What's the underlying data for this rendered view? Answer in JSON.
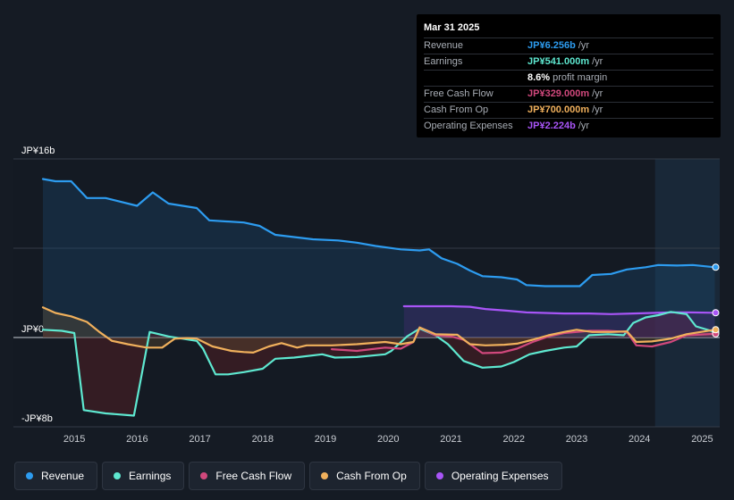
{
  "chart_data": {
    "type": "area",
    "currency": "JPY",
    "y_tick_labels": [
      "JP¥16b",
      "JP¥0",
      "-JP¥8b"
    ],
    "ylim": [
      -8,
      16
    ],
    "xlim": [
      2014.5,
      2025.25
    ],
    "x_tick_labels": [
      "2015",
      "2016",
      "2017",
      "2018",
      "2019",
      "2020",
      "2021",
      "2022",
      "2023",
      "2024",
      "2025"
    ],
    "x_tick_values": [
      2015,
      2016,
      2017,
      2018,
      2019,
      2020,
      2021,
      2022,
      2023,
      2024,
      2025
    ],
    "forecast_shade_start": 2024.25,
    "series": [
      {
        "name": "Revenue",
        "color": "#2d9cf0",
        "fill": true,
        "points": [
          [
            2014.5,
            14.2
          ],
          [
            2014.7,
            14.0
          ],
          [
            2014.95,
            14.0
          ],
          [
            2015.2,
            12.5
          ],
          [
            2015.5,
            12.5
          ],
          [
            2016.0,
            11.8
          ],
          [
            2016.25,
            13.0
          ],
          [
            2016.5,
            12.0
          ],
          [
            2016.95,
            11.6
          ],
          [
            2017.15,
            10.5
          ],
          [
            2017.7,
            10.3
          ],
          [
            2017.95,
            10.0
          ],
          [
            2018.2,
            9.2
          ],
          [
            2018.5,
            9.0
          ],
          [
            2018.8,
            8.8
          ],
          [
            2019.2,
            8.7
          ],
          [
            2019.5,
            8.5
          ],
          [
            2019.8,
            8.2
          ],
          [
            2020.2,
            7.9
          ],
          [
            2020.5,
            7.8
          ],
          [
            2020.65,
            7.9
          ],
          [
            2020.85,
            7.1
          ],
          [
            2021.1,
            6.6
          ],
          [
            2021.3,
            6.0
          ],
          [
            2021.5,
            5.5
          ],
          [
            2021.8,
            5.4
          ],
          [
            2022.05,
            5.2
          ],
          [
            2022.2,
            4.7
          ],
          [
            2022.5,
            4.6
          ],
          [
            2022.75,
            4.6
          ],
          [
            2023.05,
            4.6
          ],
          [
            2023.25,
            5.6
          ],
          [
            2023.55,
            5.7
          ],
          [
            2023.8,
            6.1
          ],
          [
            2024.1,
            6.3
          ],
          [
            2024.3,
            6.5
          ],
          [
            2024.6,
            6.45
          ],
          [
            2024.85,
            6.5
          ],
          [
            2025.2,
            6.3
          ]
        ]
      },
      {
        "name": "Earnings",
        "color": "#5ee8d0",
        "fill": true,
        "points": [
          [
            2014.5,
            0.7
          ],
          [
            2014.8,
            0.6
          ],
          [
            2015.0,
            0.4
          ],
          [
            2015.15,
            -6.5
          ],
          [
            2015.5,
            -6.8
          ],
          [
            2015.95,
            -7.0
          ],
          [
            2016.05,
            -4.0
          ],
          [
            2016.2,
            0.5
          ],
          [
            2016.5,
            0.1
          ],
          [
            2016.95,
            -0.3
          ],
          [
            2017.05,
            -1.0
          ],
          [
            2017.25,
            -3.3
          ],
          [
            2017.45,
            -3.3
          ],
          [
            2017.7,
            -3.1
          ],
          [
            2018.0,
            -2.8
          ],
          [
            2018.2,
            -1.9
          ],
          [
            2018.5,
            -1.8
          ],
          [
            2018.95,
            -1.5
          ],
          [
            2019.15,
            -1.8
          ],
          [
            2019.5,
            -1.75
          ],
          [
            2019.95,
            -1.5
          ],
          [
            2020.05,
            -1.2
          ],
          [
            2020.3,
            0.1
          ],
          [
            2020.5,
            0.8
          ],
          [
            2020.75,
            0.2
          ],
          [
            2020.95,
            -0.6
          ],
          [
            2021.2,
            -2.1
          ],
          [
            2021.5,
            -2.7
          ],
          [
            2021.8,
            -2.6
          ],
          [
            2022.0,
            -2.2
          ],
          [
            2022.25,
            -1.5
          ],
          [
            2022.5,
            -1.2
          ],
          [
            2022.8,
            -0.9
          ],
          [
            2023.0,
            -0.8
          ],
          [
            2023.2,
            0.2
          ],
          [
            2023.5,
            0.3
          ],
          [
            2023.75,
            0.2
          ],
          [
            2023.9,
            1.3
          ],
          [
            2024.1,
            1.8
          ],
          [
            2024.3,
            2.0
          ],
          [
            2024.5,
            2.3
          ],
          [
            2024.75,
            2.1
          ],
          [
            2024.9,
            1.0
          ],
          [
            2025.2,
            0.5
          ]
        ]
      },
      {
        "name": "Free Cash Flow",
        "color": "#d0487c",
        "fill": false,
        "points": [
          [
            2019.1,
            -1.05
          ],
          [
            2019.5,
            -1.2
          ],
          [
            2019.95,
            -0.9
          ],
          [
            2020.2,
            -1.0
          ],
          [
            2020.4,
            -0.4
          ],
          [
            2020.5,
            0.9
          ],
          [
            2020.75,
            0.2
          ],
          [
            2021.0,
            0.1
          ],
          [
            2021.2,
            -0.2
          ],
          [
            2021.5,
            -1.4
          ],
          [
            2021.8,
            -1.35
          ],
          [
            2022.05,
            -1.0
          ],
          [
            2022.3,
            -0.4
          ],
          [
            2022.55,
            0.1
          ],
          [
            2022.8,
            0.4
          ],
          [
            2023.0,
            0.5
          ],
          [
            2023.2,
            0.6
          ],
          [
            2023.5,
            0.6
          ],
          [
            2023.8,
            0.5
          ],
          [
            2023.95,
            -0.7
          ],
          [
            2024.2,
            -0.8
          ],
          [
            2024.5,
            -0.4
          ],
          [
            2024.75,
            0.2
          ],
          [
            2025.2,
            0.33
          ]
        ]
      },
      {
        "name": "Cash From Op",
        "color": "#f0b05c",
        "fill": true,
        "points": [
          [
            2014.5,
            2.7
          ],
          [
            2014.7,
            2.2
          ],
          [
            2014.95,
            1.9
          ],
          [
            2015.2,
            1.4
          ],
          [
            2015.4,
            0.5
          ],
          [
            2015.6,
            -0.3
          ],
          [
            2015.85,
            -0.6
          ],
          [
            2016.15,
            -0.9
          ],
          [
            2016.4,
            -0.9
          ],
          [
            2016.6,
            -0.1
          ],
          [
            2016.8,
            -0.05
          ],
          [
            2016.95,
            -0.1
          ],
          [
            2017.2,
            -0.8
          ],
          [
            2017.5,
            -1.2
          ],
          [
            2017.7,
            -1.3
          ],
          [
            2017.85,
            -1.35
          ],
          [
            2018.1,
            -0.8
          ],
          [
            2018.3,
            -0.5
          ],
          [
            2018.55,
            -0.9
          ],
          [
            2018.7,
            -0.7
          ],
          [
            2019.1,
            -0.7
          ],
          [
            2019.5,
            -0.6
          ],
          [
            2019.95,
            -0.4
          ],
          [
            2020.2,
            -0.6
          ],
          [
            2020.4,
            -0.4
          ],
          [
            2020.5,
            0.9
          ],
          [
            2020.75,
            0.3
          ],
          [
            2021.1,
            0.25
          ],
          [
            2021.3,
            -0.6
          ],
          [
            2021.55,
            -0.7
          ],
          [
            2021.85,
            -0.65
          ],
          [
            2022.05,
            -0.55
          ],
          [
            2022.3,
            -0.2
          ],
          [
            2022.55,
            0.2
          ],
          [
            2022.8,
            0.5
          ],
          [
            2023.0,
            0.7
          ],
          [
            2023.25,
            0.5
          ],
          [
            2023.55,
            0.5
          ],
          [
            2023.8,
            0.55
          ],
          [
            2023.95,
            -0.4
          ],
          [
            2024.2,
            -0.35
          ],
          [
            2024.5,
            -0.1
          ],
          [
            2024.75,
            0.3
          ],
          [
            2025.2,
            0.7
          ]
        ]
      },
      {
        "name": "Operating Expenses",
        "color": "#a855f7",
        "fill": true,
        "points": [
          [
            2020.25,
            2.8
          ],
          [
            2020.6,
            2.8
          ],
          [
            2021.0,
            2.8
          ],
          [
            2021.3,
            2.75
          ],
          [
            2021.55,
            2.55
          ],
          [
            2021.9,
            2.4
          ],
          [
            2022.2,
            2.25
          ],
          [
            2022.5,
            2.2
          ],
          [
            2022.8,
            2.15
          ],
          [
            2023.2,
            2.15
          ],
          [
            2023.55,
            2.1
          ],
          [
            2023.9,
            2.15
          ],
          [
            2024.2,
            2.2
          ],
          [
            2024.5,
            2.25
          ],
          [
            2024.8,
            2.25
          ],
          [
            2025.2,
            2.22
          ]
        ]
      }
    ]
  },
  "tooltip": {
    "date": "Mar 31 2025",
    "rows": [
      {
        "label": "Revenue",
        "value": "JP¥6.256b",
        "unit": "/yr",
        "color": "#2d9cf0"
      },
      {
        "label": "Earnings",
        "value": "JP¥541.000m",
        "unit": "/yr",
        "color": "#5ee8d0"
      },
      {
        "label": "",
        "value": "8.6%",
        "unit": "profit margin",
        "color": "#ffffff"
      },
      {
        "label": "Free Cash Flow",
        "value": "JP¥329.000m",
        "unit": "/yr",
        "color": "#d0487c"
      },
      {
        "label": "Cash From Op",
        "value": "JP¥700.000m",
        "unit": "/yr",
        "color": "#f0b05c"
      },
      {
        "label": "Operating Expenses",
        "value": "JP¥2.224b",
        "unit": "/yr",
        "color": "#a855f7"
      }
    ]
  },
  "legend": [
    {
      "name": "Revenue",
      "color": "#2d9cf0"
    },
    {
      "name": "Earnings",
      "color": "#5ee8d0"
    },
    {
      "name": "Free Cash Flow",
      "color": "#d0487c"
    },
    {
      "name": "Cash From Op",
      "color": "#f0b05c"
    },
    {
      "name": "Operating Expenses",
      "color": "#a855f7"
    }
  ]
}
